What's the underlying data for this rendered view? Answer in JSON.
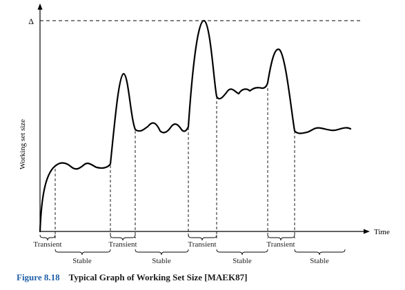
{
  "diagram": {
    "x_axis_label": "Time",
    "y_axis_label": "Working set size",
    "delta_label": "Δ",
    "phases": [
      {
        "label": "Transient"
      },
      {
        "label": "Stable"
      },
      {
        "label": "Transient"
      },
      {
        "label": "Stable"
      },
      {
        "label": "Transient"
      },
      {
        "label": "Stable"
      },
      {
        "label": "Transient"
      },
      {
        "label": "Stable"
      }
    ]
  },
  "caption": {
    "number": "Figure 8.18",
    "text": "Typical Graph of Working Set Size [MAEK87]"
  },
  "colors": {
    "curve": "#000000",
    "caption_number": "#1f5fa8"
  }
}
